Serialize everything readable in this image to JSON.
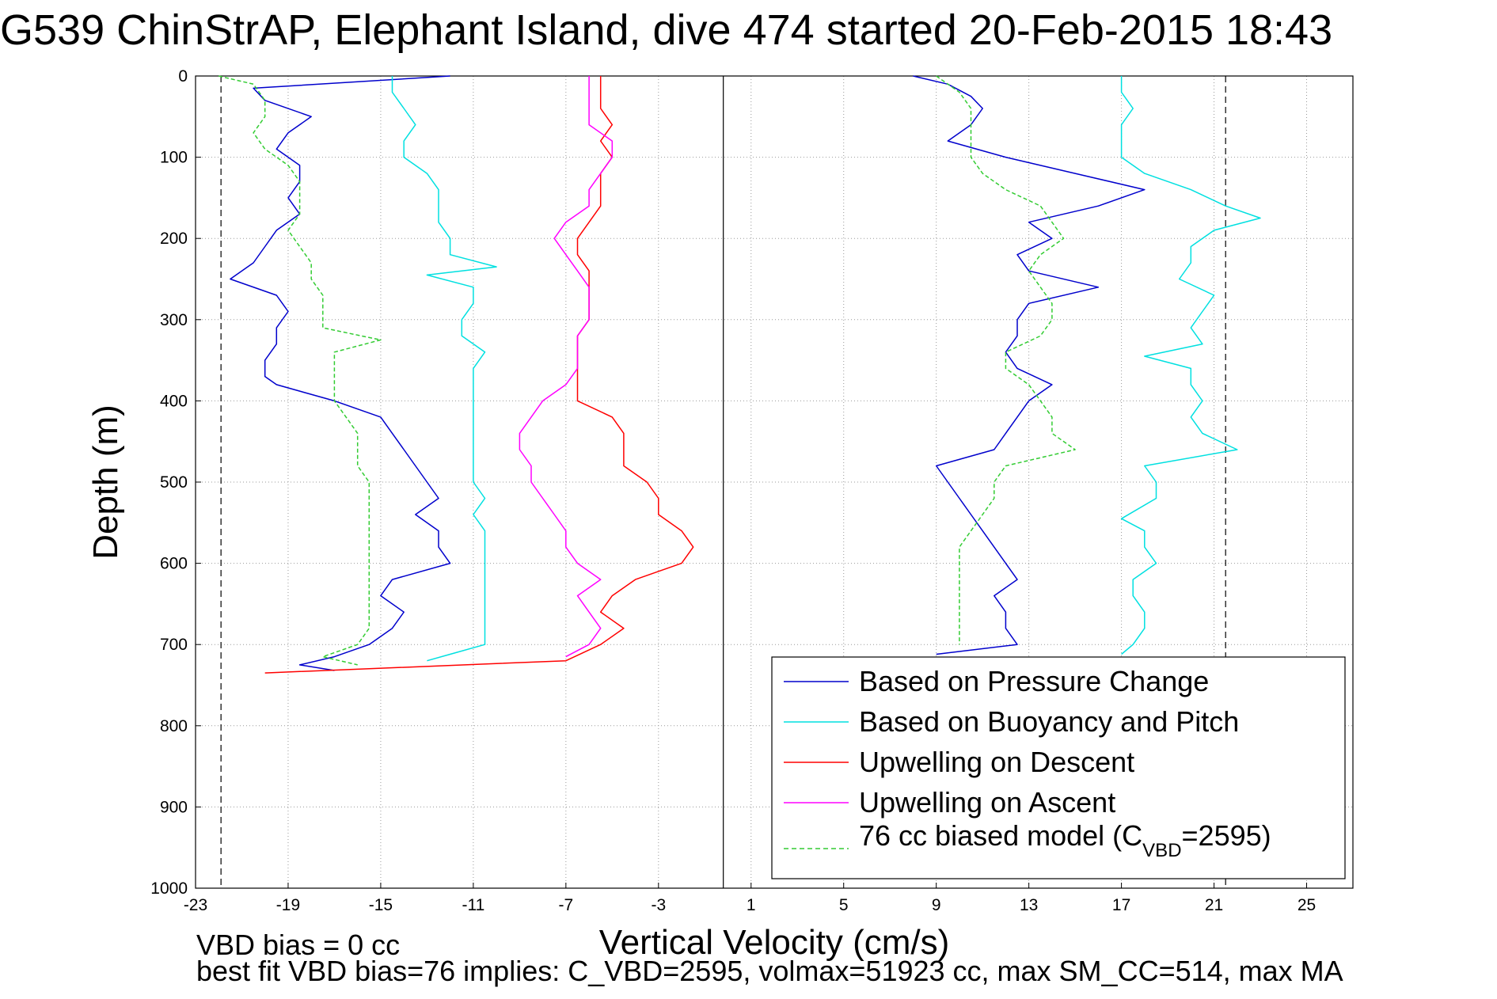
{
  "chart_data": {
    "type": "line",
    "title": "G539 ChinStrAP, Elephant Island, dive 474 started 20-Feb-2015 18:43",
    "xlabel": "Vertical Velocity (cm/s)",
    "ylabel": "Depth (m)",
    "xlim": [
      -23,
      27
    ],
    "ylim": [
      1000,
      0
    ],
    "y_reversed": true,
    "x_ticks": [
      -23,
      -19,
      -15,
      -11,
      -7,
      -3,
      1,
      5,
      9,
      13,
      17,
      21,
      25
    ],
    "y_ticks": [
      0,
      100,
      200,
      300,
      400,
      500,
      600,
      700,
      800,
      900,
      1000
    ],
    "grid": true,
    "reference_lines": {
      "dashed_x": [
        -21.9,
        21.5
      ],
      "solid_x": [
        -0.2
      ]
    },
    "legend_location": "lower right",
    "notes": [
      "VBD bias = 0 cc",
      "best fit VBD bias=76 implies: C_VBD=2595, volmax=51923 cc, max SM_CC=514, max MA"
    ],
    "series": [
      {
        "name": "Based on Pressure Change",
        "color": "#0000cc",
        "style": "solid",
        "segments": [
          {
            "depth": [
              0,
              15,
              30,
              50,
              70,
              90,
              110,
              130,
              150,
              170,
              190,
              210,
              230,
              250,
              270,
              290,
              310,
              330,
              350,
              370,
              380,
              400,
              420,
              440,
              460,
              480,
              500,
              520,
              540,
              560,
              580,
              600,
              620,
              640,
              660,
              680,
              700,
              715,
              725,
              732
            ],
            "velocity": [
              -12,
              -20.5,
              -20,
              -18,
              -19,
              -19.5,
              -18.5,
              -18.5,
              -19,
              -18.5,
              -19.5,
              -20,
              -20.5,
              -21.5,
              -19.5,
              -19,
              -19.5,
              -19.5,
              -20,
              -20,
              -19.5,
              -17,
              -15,
              -14.5,
              -14,
              -13.5,
              -13,
              -12.5,
              -13.5,
              -12.5,
              -12.5,
              -12,
              -14.5,
              -15,
              -14,
              -14.5,
              -15.5,
              -17,
              -18.5,
              -17
            ]
          },
          {
            "depth": [
              0,
              10,
              25,
              40,
              60,
              80,
              100,
              120,
              140,
              160,
              180,
              200,
              220,
              240,
              260,
              280,
              300,
              320,
              340,
              360,
              380,
              400,
              420,
              440,
              460,
              480,
              500,
              520,
              540,
              560,
              580,
              600,
              620,
              640,
              660,
              680,
              700,
              712
            ],
            "velocity": [
              8,
              9.5,
              10.5,
              11,
              10.5,
              9.5,
              12,
              15,
              18,
              16,
              13,
              14,
              12.5,
              13,
              16,
              13,
              12.5,
              12.5,
              12,
              12.5,
              14,
              13,
              12.5,
              12,
              11.5,
              9,
              9.5,
              10,
              10.5,
              11,
              11.5,
              12,
              12.5,
              11.5,
              12,
              12,
              12.5,
              9
            ]
          }
        ]
      },
      {
        "name": "Based on Buoyancy and Pitch",
        "color": "#00e0e0",
        "style": "solid",
        "segments": [
          {
            "depth": [
              0,
              20,
              40,
              60,
              80,
              100,
              120,
              140,
              160,
              180,
              200,
              220,
              235,
              245,
              260,
              280,
              300,
              320,
              340,
              360,
              380,
              400,
              420,
              440,
              460,
              480,
              500,
              520,
              540,
              560,
              580,
              600,
              620,
              640,
              660,
              680,
              700,
              712,
              720
            ],
            "velocity": [
              -14.5,
              -14.5,
              -14,
              -13.5,
              -14,
              -14,
              -13,
              -12.5,
              -12.5,
              -12.5,
              -12,
              -12,
              -10,
              -13,
              -11,
              -11,
              -11.5,
              -11.5,
              -10.5,
              -11,
              -11,
              -11,
              -11,
              -11,
              -11,
              -11,
              -11,
              -10.5,
              -11,
              -10.5,
              -10.5,
              -10.5,
              -10.5,
              -10.5,
              -10.5,
              -10.5,
              -10.5,
              -12,
              -13
            ]
          },
          {
            "depth": [
              0,
              20,
              40,
              60,
              80,
              100,
              120,
              140,
              160,
              175,
              190,
              210,
              230,
              250,
              270,
              290,
              310,
              330,
              345,
              360,
              380,
              400,
              420,
              440,
              460,
              480,
              500,
              520,
              545,
              560,
              580,
              600,
              620,
              640,
              660,
              680,
              700,
              712
            ],
            "velocity": [
              17,
              17,
              17.5,
              17,
              17,
              17,
              18,
              20,
              21.5,
              23,
              21,
              20,
              20,
              19.5,
              21,
              20.5,
              20,
              20.5,
              18,
              20,
              20,
              20.5,
              20,
              20.5,
              22,
              18,
              18.5,
              18.5,
              17,
              18,
              18,
              18.5,
              17.5,
              17.5,
              18,
              18,
              17.5,
              17
            ]
          }
        ]
      },
      {
        "name": "Upwelling on Descent",
        "color": "#ff0000",
        "style": "solid",
        "segments": [
          {
            "depth": [
              0,
              20,
              40,
              60,
              80,
              100,
              120,
              140,
              160,
              180,
              200,
              220,
              240,
              260,
              280,
              300,
              320,
              340,
              360,
              380,
              400,
              420,
              440,
              460,
              480,
              500,
              520,
              540,
              560,
              580,
              600,
              620,
              640,
              660,
              680,
              700,
              720,
              735
            ],
            "velocity": [
              -5.5,
              -5.5,
              -5.5,
              -5,
              -5.5,
              -5,
              -5.5,
              -5.5,
              -5.5,
              -6,
              -6.5,
              -6.5,
              -6,
              -6,
              -6,
              -6,
              -6.5,
              -6.5,
              -6.5,
              -6.5,
              -6.5,
              -5,
              -4.5,
              -4.5,
              -4.5,
              -3.5,
              -3,
              -3,
              -2,
              -1.5,
              -2,
              -4,
              -5,
              -5.5,
              -4.5,
              -5.5,
              -7,
              -20
            ]
          }
        ]
      },
      {
        "name": "Upwelling on Ascent",
        "color": "#ff00ff",
        "style": "solid",
        "segments": [
          {
            "depth": [
              0,
              20,
              40,
              60,
              80,
              100,
              120,
              140,
              160,
              180,
              200,
              220,
              240,
              260,
              280,
              300,
              320,
              340,
              360,
              380,
              400,
              420,
              440,
              460,
              480,
              500,
              520,
              540,
              560,
              580,
              600,
              620,
              640,
              660,
              680,
              700,
              715
            ],
            "velocity": [
              -6,
              -6,
              -6,
              -6,
              -5,
              -5,
              -5.5,
              -6,
              -6,
              -7,
              -7.5,
              -7,
              -6.5,
              -6,
              -6,
              -6,
              -6.5,
              -6.5,
              -6.5,
              -7,
              -8,
              -8.5,
              -9,
              -9,
              -8.5,
              -8.5,
              -8,
              -7.5,
              -7,
              -7,
              -6.5,
              -5.5,
              -6.5,
              -6,
              -5.5,
              -6,
              -7
            ]
          }
        ]
      },
      {
        "name": "76 cc biased model (C_VBD=2595)",
        "color": "#33cc33",
        "style": "dashed",
        "segments": [
          {
            "depth": [
              0,
              10,
              30,
              50,
              70,
              90,
              110,
              130,
              150,
              170,
              190,
              210,
              230,
              250,
              270,
              290,
              310,
              325,
              340,
              360,
              380,
              400,
              420,
              440,
              460,
              480,
              500,
              520,
              540,
              560,
              580,
              600,
              620,
              640,
              660,
              680,
              700,
              715,
              725
            ],
            "velocity": [
              -22,
              -20.5,
              -20,
              -20,
              -20.5,
              -20,
              -19,
              -18.5,
              -18.5,
              -18.5,
              -19,
              -18.5,
              -18,
              -18,
              -17.5,
              -17.5,
              -17.5,
              -15,
              -17,
              -17,
              -17,
              -17,
              -16.5,
              -16,
              -16,
              -16,
              -15.5,
              -15.5,
              -15.5,
              -15.5,
              -15.5,
              -15.5,
              -15.5,
              -15.5,
              -15.5,
              -15.5,
              -16,
              -17.5,
              -16
            ]
          },
          {
            "depth": [
              0,
              20,
              40,
              60,
              80,
              100,
              120,
              140,
              160,
              180,
              200,
              220,
              240,
              260,
              280,
              300,
              320,
              340,
              360,
              380,
              400,
              420,
              440,
              460,
              480,
              500,
              520,
              540,
              560,
              580,
              600,
              620,
              640,
              660,
              680,
              700
            ],
            "velocity": [
              9,
              10,
              10.5,
              10.5,
              10.5,
              10.5,
              11,
              12,
              13.5,
              14,
              14.5,
              13.5,
              13,
              13.5,
              14,
              14,
              13.5,
              12,
              12,
              13,
              13.5,
              14,
              14,
              15,
              12,
              11.5,
              11.5,
              11,
              10.5,
              10,
              10,
              10,
              10,
              10,
              10,
              10
            ]
          }
        ]
      }
    ]
  }
}
